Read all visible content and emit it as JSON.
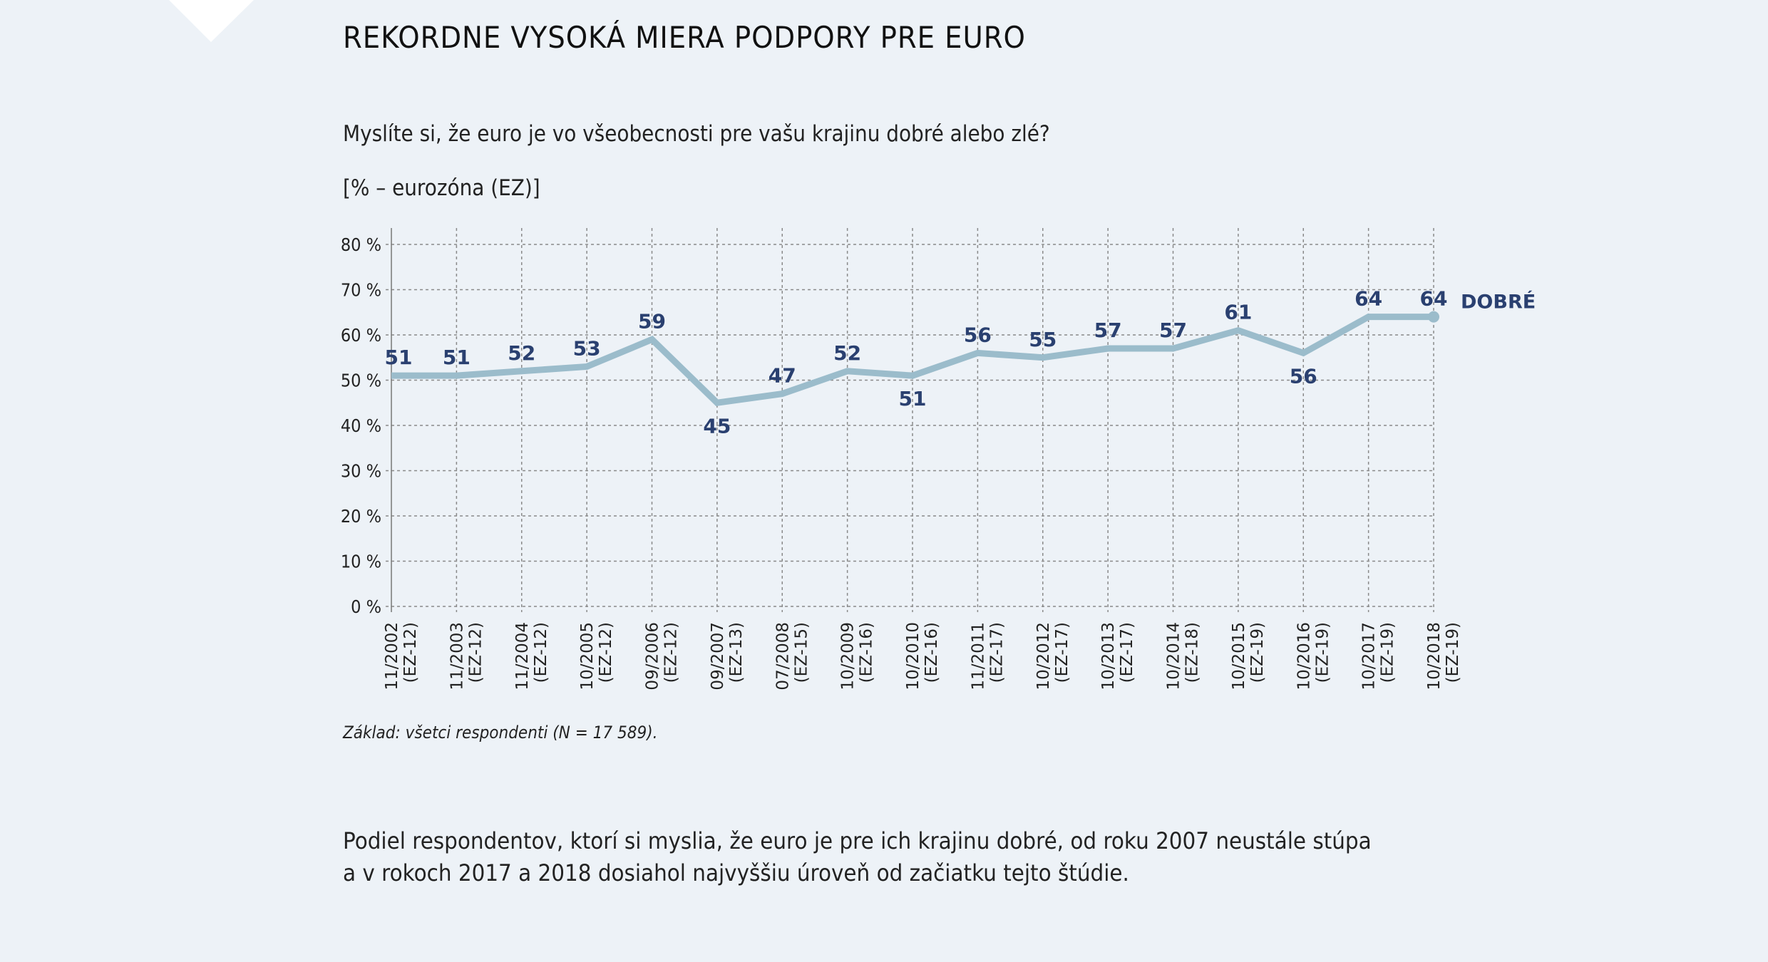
{
  "title": "REKORDNE VYSOKÁ MIERA PODPORY PRE EURO",
  "question": "Myslíte si, že euro je vo všeobecnosti pre vašu krajinu dobré alebo zlé?",
  "unit": "[% – eurozóna (EZ)]",
  "footnote": "Základ: všetci respondenti (N = 17 589).",
  "paragraph": [
    "Podiel respondentov, ktorí si myslia, že euro je pre ich krajinu dobré, od roku 2007 neustále stúpa",
    "a v rokoch 2017 a 2018 dosiahol najvyššiu úroveň od začiatku tejto štúdie."
  ],
  "colors": {
    "background": "#edf2f7",
    "line": "#9bbccb",
    "label": "#2a4070",
    "grid": "#8a8a8a"
  },
  "chart_data": {
    "type": "line",
    "categories": [
      [
        "11/2002",
        "(EZ-12)"
      ],
      [
        "11/2003",
        "(EZ-12)"
      ],
      [
        "11/2004",
        "(EZ-12)"
      ],
      [
        "10/2005",
        "(EZ-12)"
      ],
      [
        "09/2006",
        "(EZ-12)"
      ],
      [
        "09/2007",
        "(EZ-13)"
      ],
      [
        "07/2008",
        "(EZ-15)"
      ],
      [
        "10/2009",
        "(EZ-16)"
      ],
      [
        "10/2010",
        "(EZ-16)"
      ],
      [
        "11/2011",
        "(EZ-17)"
      ],
      [
        "10/2012",
        "(EZ-17)"
      ],
      [
        "10/2013",
        "(EZ-17)"
      ],
      [
        "10/2014",
        "(EZ-18)"
      ],
      [
        "10/2015",
        "(EZ-19)"
      ],
      [
        "10/2016",
        "(EZ-19)"
      ],
      [
        "10/2017",
        "(EZ-19)"
      ],
      [
        "10/2018",
        "(EZ-19)"
      ]
    ],
    "series": [
      {
        "name": "DOBRÉ",
        "values": [
          51,
          51,
          52,
          53,
          59,
          45,
          47,
          52,
          51,
          56,
          55,
          57,
          57,
          61,
          56,
          64,
          64
        ]
      }
    ],
    "label_below": [
      5,
      8,
      14
    ],
    "yticks": [
      "0 %",
      "10 %",
      "20 %",
      "30 %",
      "40 %",
      "50 %",
      "60 %",
      "70 %",
      "80 %"
    ],
    "ylim": [
      0,
      80
    ],
    "grid": true,
    "grid_style": "dotted"
  }
}
